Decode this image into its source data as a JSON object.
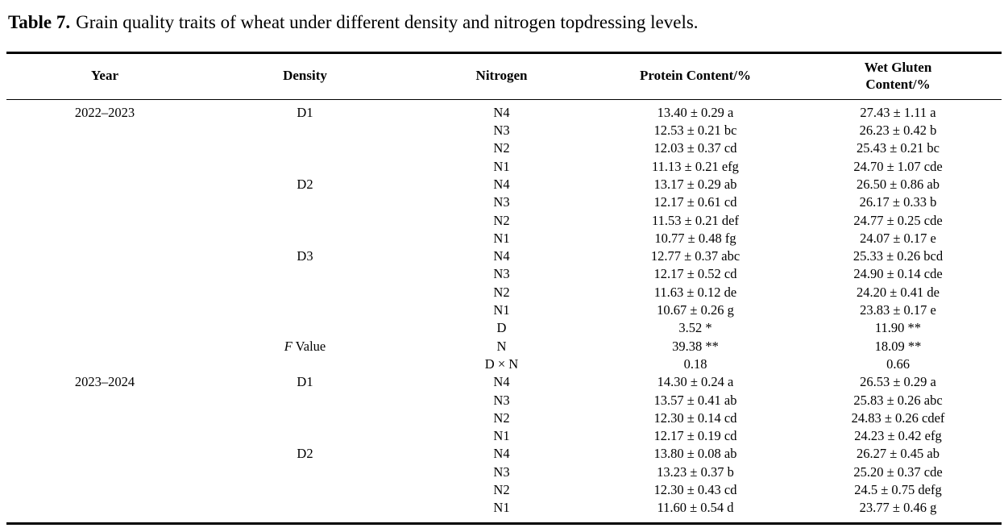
{
  "caption": {
    "label": "Table 7.",
    "text": "Grain quality traits of wheat under different density and nitrogen topdressing levels."
  },
  "table": {
    "header": {
      "year": "Year",
      "density": "Density",
      "nitrogen": "Nitrogen",
      "protein": "Protein Content/%",
      "wet_gluten_line1": "Wet Gluten",
      "wet_gluten_line2": "Content/%"
    },
    "rows": [
      {
        "year": "2022–2023",
        "density_italic": "",
        "density": "D1",
        "nitrogen": "N4",
        "protein": "13.40 ± 0.29 a",
        "wet_gluten": "27.43 ± 1.11 a"
      },
      {
        "year": "",
        "density_italic": "",
        "density": "",
        "nitrogen": "N3",
        "protein": "12.53 ± 0.21 bc",
        "wet_gluten": "26.23 ± 0.42 b"
      },
      {
        "year": "",
        "density_italic": "",
        "density": "",
        "nitrogen": "N2",
        "protein": "12.03 ± 0.37 cd",
        "wet_gluten": "25.43 ± 0.21 bc"
      },
      {
        "year": "",
        "density_italic": "",
        "density": "",
        "nitrogen": "N1",
        "protein": "11.13 ± 0.21 efg",
        "wet_gluten": "24.70 ± 1.07 cde"
      },
      {
        "year": "",
        "density_italic": "",
        "density": "D2",
        "nitrogen": "N4",
        "protein": "13.17 ± 0.29 ab",
        "wet_gluten": "26.50 ± 0.86 ab"
      },
      {
        "year": "",
        "density_italic": "",
        "density": "",
        "nitrogen": "N3",
        "protein": "12.17 ± 0.61 cd",
        "wet_gluten": "26.17 ± 0.33 b"
      },
      {
        "year": "",
        "density_italic": "",
        "density": "",
        "nitrogen": "N2",
        "protein": "11.53 ± 0.21 def",
        "wet_gluten": "24.77 ± 0.25 cde"
      },
      {
        "year": "",
        "density_italic": "",
        "density": "",
        "nitrogen": "N1",
        "protein": "10.77 ± 0.48 fg",
        "wet_gluten": "24.07 ± 0.17 e"
      },
      {
        "year": "",
        "density_italic": "",
        "density": "D3",
        "nitrogen": "N4",
        "protein": "12.77 ± 0.37 abc",
        "wet_gluten": "25.33 ± 0.26 bcd"
      },
      {
        "year": "",
        "density_italic": "",
        "density": "",
        "nitrogen": "N3",
        "protein": "12.17 ± 0.52 cd",
        "wet_gluten": "24.90 ± 0.14 cde"
      },
      {
        "year": "",
        "density_italic": "",
        "density": "",
        "nitrogen": "N2",
        "protein": "11.63 ± 0.12 de",
        "wet_gluten": "24.20 ± 0.41 de"
      },
      {
        "year": "",
        "density_italic": "",
        "density": "",
        "nitrogen": "N1",
        "protein": "10.67 ± 0.26 g",
        "wet_gluten": "23.83 ± 0.17 e"
      },
      {
        "year": "",
        "density_italic": "",
        "density": "",
        "nitrogen": "D",
        "protein": "3.52 *",
        "wet_gluten": "11.90 **"
      },
      {
        "year": "",
        "density_italic": "F",
        "density": " Value",
        "nitrogen": "N",
        "protein": "39.38 **",
        "wet_gluten": "18.09 **"
      },
      {
        "year": "",
        "density_italic": "",
        "density": "",
        "nitrogen": "D × N",
        "protein": "0.18",
        "wet_gluten": "0.66"
      },
      {
        "year": "2023–2024",
        "density_italic": "",
        "density": "D1",
        "nitrogen": "N4",
        "protein": "14.30 ± 0.24 a",
        "wet_gluten": "26.53 ± 0.29 a"
      },
      {
        "year": "",
        "density_italic": "",
        "density": "",
        "nitrogen": "N3",
        "protein": "13.57 ± 0.41 ab",
        "wet_gluten": "25.83 ± 0.26 abc"
      },
      {
        "year": "",
        "density_italic": "",
        "density": "",
        "nitrogen": "N2",
        "protein": "12.30 ± 0.14 cd",
        "wet_gluten": "24.83 ± 0.26 cdef"
      },
      {
        "year": "",
        "density_italic": "",
        "density": "",
        "nitrogen": "N1",
        "protein": "12.17 ± 0.19 cd",
        "wet_gluten": "24.23 ± 0.42 efg"
      },
      {
        "year": "",
        "density_italic": "",
        "density": "D2",
        "nitrogen": "N4",
        "protein": "13.80 ± 0.08 ab",
        "wet_gluten": "26.27 ± 0.45 ab"
      },
      {
        "year": "",
        "density_italic": "",
        "density": "",
        "nitrogen": "N3",
        "protein": "13.23 ± 0.37 b",
        "wet_gluten": "25.20 ± 0.37 cde"
      },
      {
        "year": "",
        "density_italic": "",
        "density": "",
        "nitrogen": "N2",
        "protein": "12.30 ± 0.43 cd",
        "wet_gluten": "24.5 ± 0.75 defg"
      },
      {
        "year": "",
        "density_italic": "",
        "density": "",
        "nitrogen": "N1",
        "protein": "11.60 ± 0.54 d",
        "wet_gluten": "23.77 ± 0.46 g"
      }
    ]
  }
}
